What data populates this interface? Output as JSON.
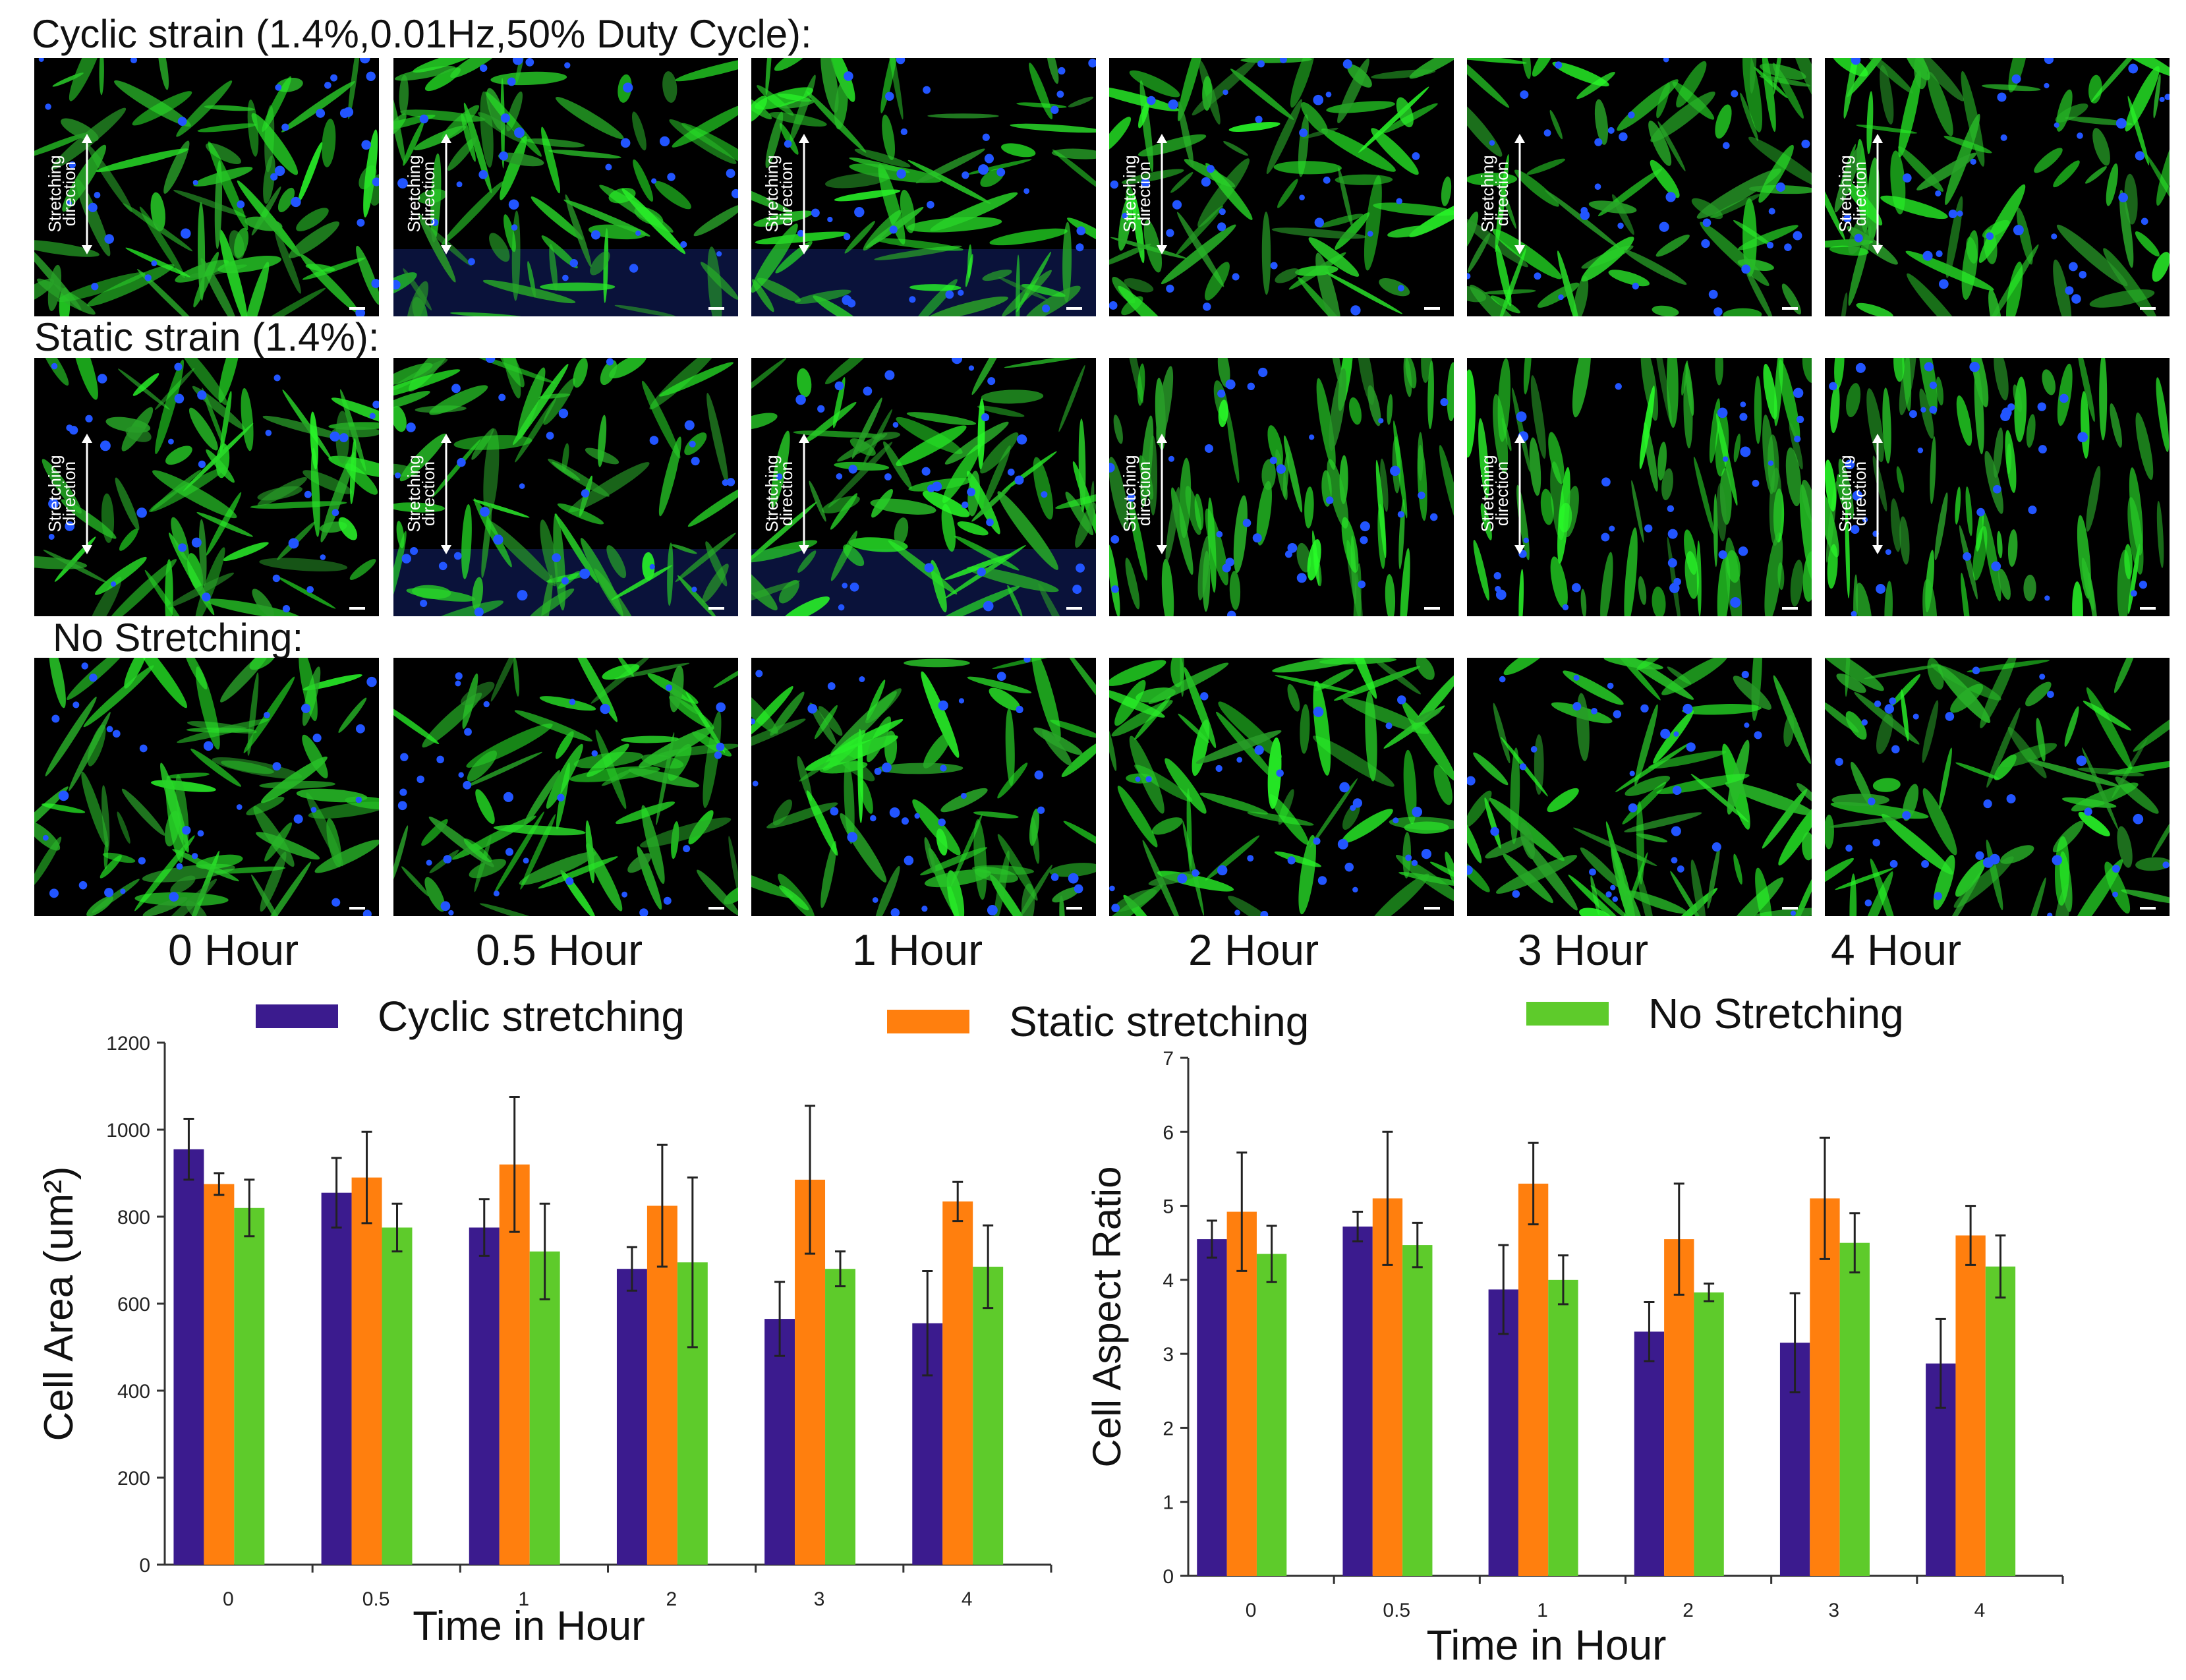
{
  "figure": {
    "row_labels": [
      "Cyclic strain (1.4%,0.01Hz,50% Duty Cycle):",
      "Static strain (1.4%):",
      "No Stretching:"
    ],
    "time_labels": [
      "0 Hour",
      "0.5 Hour",
      "1 Hour",
      "2 Hour",
      "3 Hour",
      "4 Hour"
    ],
    "direction_label_line1": "Stretching",
    "direction_label_line2": "direction",
    "direction_marked_rows": [
      0,
      1
    ],
    "colors": {
      "cell": "#33cc33",
      "nucleus": "#2255ff",
      "background": "#000000"
    }
  },
  "legend": [
    {
      "label": "Cyclic stretching",
      "color": "#3b1b8e"
    },
    {
      "label": "Static stretching",
      "color": "#ff7f0e"
    },
    {
      "label": "No Stretching",
      "color": "#5ecb2b"
    }
  ],
  "chart_data": [
    {
      "type": "bar",
      "title": "",
      "xlabel": "Time in Hour",
      "ylabel": "Cell Area (um²)",
      "categories": [
        "0",
        "0.5",
        "1",
        "2",
        "3",
        "4"
      ],
      "ylim": [
        0,
        1200
      ],
      "yticks": [
        0,
        200,
        400,
        600,
        800,
        1000,
        1200
      ],
      "series": [
        {
          "name": "Cyclic stretching",
          "color": "#3b1b8e",
          "values": [
            955,
            855,
            775,
            680,
            565,
            555
          ],
          "errors": [
            70,
            80,
            65,
            50,
            85,
            120
          ]
        },
        {
          "name": "Static stretching",
          "color": "#ff7f0e",
          "values": [
            875,
            890,
            920,
            825,
            885,
            835
          ],
          "errors": [
            25,
            105,
            155,
            140,
            170,
            45
          ]
        },
        {
          "name": "No Stretching",
          "color": "#5ecb2b",
          "values": [
            820,
            775,
            720,
            695,
            680,
            685
          ],
          "errors": [
            65,
            55,
            110,
            195,
            40,
            95
          ]
        }
      ]
    },
    {
      "type": "bar",
      "title": "",
      "xlabel": "Time in Hour",
      "ylabel": "Cell Aspect Ratio",
      "categories": [
        "0",
        "0.5",
        "1",
        "2",
        "3",
        "4"
      ],
      "ylim": [
        0,
        7
      ],
      "yticks": [
        0,
        1,
        2,
        3,
        4,
        5,
        6,
        7
      ],
      "series": [
        {
          "name": "Cyclic stretching",
          "color": "#3b1b8e",
          "values": [
            4.55,
            4.72,
            3.87,
            3.3,
            3.15,
            2.87
          ],
          "errors": [
            0.25,
            0.2,
            0.6,
            0.4,
            0.67,
            0.6
          ]
        },
        {
          "name": "Static stretching",
          "color": "#ff7f0e",
          "values": [
            4.92,
            5.1,
            5.3,
            4.55,
            5.1,
            4.6
          ],
          "errors": [
            0.8,
            0.9,
            0.55,
            0.75,
            0.82,
            0.4
          ]
        },
        {
          "name": "No Stretching",
          "color": "#5ecb2b",
          "values": [
            4.35,
            4.47,
            4.0,
            3.83,
            4.5,
            4.18
          ],
          "errors": [
            0.38,
            0.3,
            0.33,
            0.12,
            0.4,
            0.42
          ]
        }
      ]
    }
  ]
}
